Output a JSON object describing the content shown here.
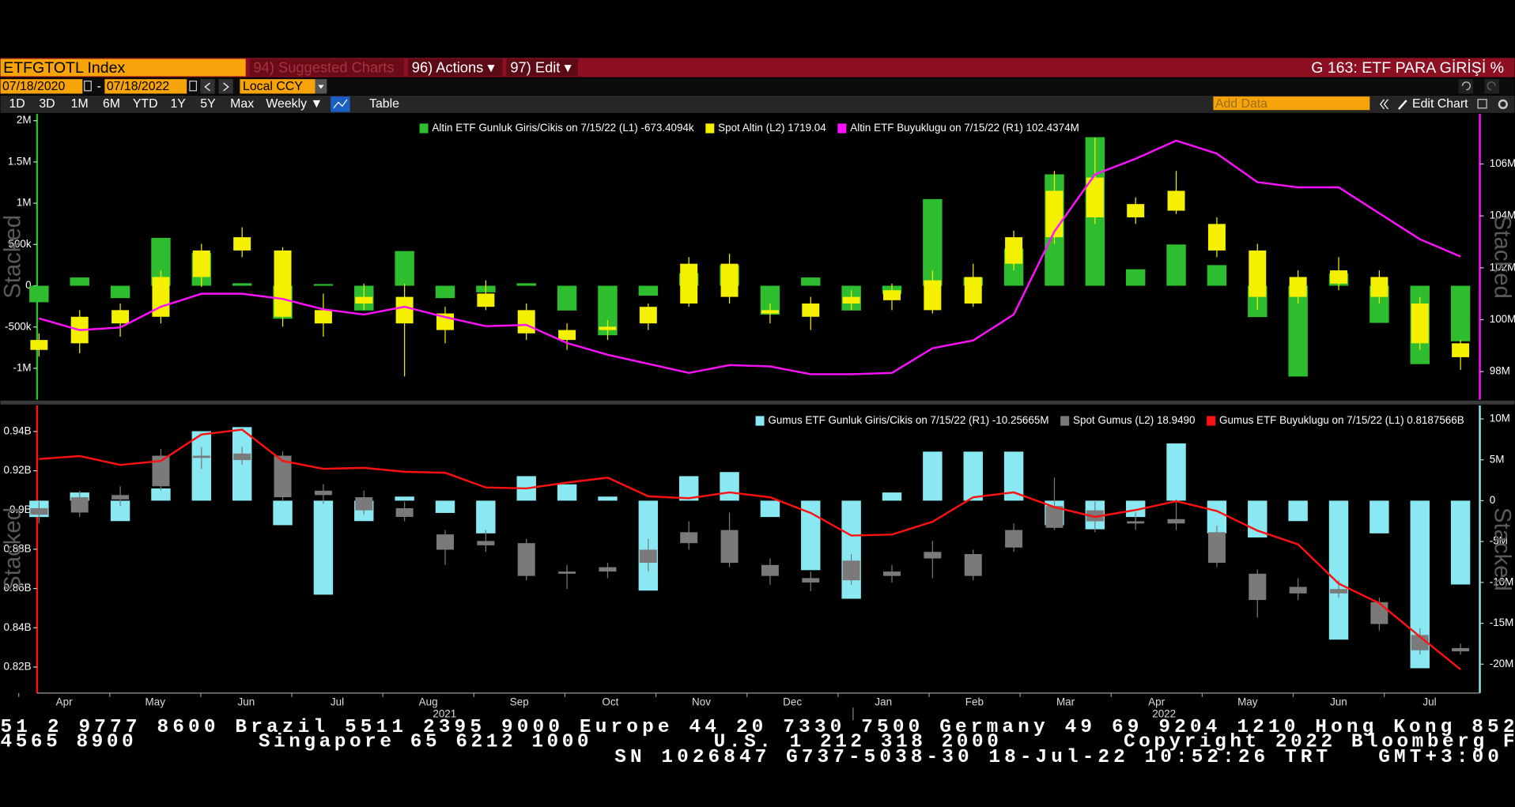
{
  "toolbar": {
    "security": "ETFGTOTL Index",
    "suggested": "94) Suggested Charts",
    "actions": "96) Actions ▾",
    "edit": "97) Edit ▾",
    "page_title": "G 163: ETF PARA GİRİŞİ %",
    "start_date": "07/18/2020",
    "date_separator": "-",
    "end_date": "07/18/2022",
    "currency": "Local CCY",
    "periods": [
      "1D",
      "3D",
      "1M",
      "6M",
      "YTD",
      "1Y",
      "5Y",
      "Max"
    ],
    "frequency": "Weekly ▼",
    "table": "Table",
    "add_data": "Add Data",
    "edit_chart": "Edit Chart"
  },
  "chart_data": [
    {
      "type": "combo",
      "side_label": "Stacked",
      "ylim": [
        -1380000,
        2082000
      ],
      "yticks": [
        {
          "value": 2000000,
          "label": "2M"
        },
        {
          "value": 1500000,
          "label": "1.5M"
        },
        {
          "value": 1000000,
          "label": "1M"
        },
        {
          "value": 500000,
          "label": "500k"
        },
        0,
        {
          "value": -500000,
          "label": "-500k"
        },
        {
          "value": -1000000,
          "label": "-1M"
        }
      ],
      "y2lim": [
        96920000,
        107930000
      ],
      "y2ticks": [
        {
          "value": 106000000,
          "label": "106M"
        },
        {
          "value": 104000000,
          "label": "104M"
        },
        {
          "value": 102000000,
          "label": "102M"
        },
        {
          "value": 100000000,
          "label": "100M"
        },
        {
          "value": 98000000,
          "label": "98M"
        }
      ],
      "l2lim": [
        1655,
        2086
      ],
      "series": [
        {
          "name": "Altin ETF Gunluk Giris/Cikis on 7/15/22 (L1) -673.4094k",
          "color": "#2ebd2e",
          "kind": "bar",
          "axis": "y",
          "values": [
            -200000,
            100000,
            -150000,
            580000,
            400000,
            30000,
            -400000,
            20000,
            -300000,
            420000,
            -150000,
            -80000,
            30000,
            -300000,
            -600000,
            -120000,
            150000,
            250000,
            -350000,
            100000,
            -300000,
            -100000,
            1050000,
            100000,
            450000,
            1350000,
            1800000,
            200000,
            500000,
            250000,
            -380000,
            -1100000,
            150000,
            -450000,
            -950000,
            -673409.4
          ]
        },
        {
          "name": "Spot Altin (L2) 1719.04",
          "color": "#f5f000",
          "kind": "candle",
          "axis": "l2",
          "open": [
            1730,
            1740,
            1770,
            1780,
            1840,
            1900,
            1880,
            1770,
            1800,
            1810,
            1760,
            1815,
            1790,
            1745,
            1760,
            1770,
            1800,
            1860,
            1790,
            1780,
            1800,
            1805,
            1835,
            1800,
            1860,
            1900,
            1990,
            1930,
            1940,
            1920,
            1880,
            1810,
            1850,
            1840,
            1800,
            1740
          ],
          "close": [
            1745,
            1780,
            1790,
            1840,
            1880,
            1880,
            1780,
            1790,
            1810,
            1770,
            1785,
            1795,
            1755,
            1760,
            1765,
            1795,
            1860,
            1810,
            1785,
            1800,
            1810,
            1820,
            1790,
            1840,
            1900,
            1970,
            1930,
            1950,
            1970,
            1880,
            1810,
            1840,
            1830,
            1810,
            1740,
            1719.04
          ],
          "high": [
            1755,
            1790,
            1800,
            1850,
            1890,
            1915,
            1885,
            1815,
            1830,
            1830,
            1795,
            1835,
            1800,
            1770,
            1775,
            1800,
            1870,
            1875,
            1800,
            1810,
            1820,
            1830,
            1850,
            1860,
            1910,
            2000,
            2050,
            1960,
            2000,
            1930,
            1890,
            1850,
            1870,
            1850,
            1810,
            1745
          ],
          "low": [
            1720,
            1725,
            1750,
            1770,
            1825,
            1870,
            1765,
            1750,
            1790,
            1690,
            1740,
            1790,
            1745,
            1730,
            1745,
            1760,
            1795,
            1800,
            1770,
            1760,
            1790,
            1790,
            1785,
            1795,
            1850,
            1890,
            1920,
            1920,
            1935,
            1870,
            1790,
            1800,
            1820,
            1800,
            1730,
            1700
          ]
        },
        {
          "name": "Altin ETF Buyuklugu on 7/15/22 (R1) 102.4374M",
          "color": "#ff10ff",
          "kind": "line",
          "axis": "y2",
          "values": [
            100050000,
            99600000,
            99700000,
            100500000,
            101000000,
            101000000,
            100800000,
            100400000,
            100200000,
            100500000,
            100100000,
            99750000,
            99800000,
            99100000,
            98650000,
            98300000,
            97950000,
            98250000,
            98200000,
            97900000,
            97900000,
            97950000,
            98900000,
            99200000,
            100200000,
            103400000,
            105600000,
            106200000,
            106900000,
            106400000,
            105300000,
            105100000,
            105100000,
            104100000,
            103100000,
            102437400
          ]
        }
      ]
    },
    {
      "type": "combo",
      "side_label": "Stacked",
      "ylim": [
        806700000,
        953300000
      ],
      "yticks": [
        {
          "value": 940000000,
          "label": "0.94B"
        },
        {
          "value": 920000000,
          "label": "0.92B"
        },
        {
          "value": 900000000,
          "label": "0.9B"
        },
        {
          "value": 880000000,
          "label": "0.88B"
        },
        {
          "value": 860000000,
          "label": "0.86B"
        },
        {
          "value": 840000000,
          "label": "0.84B"
        },
        {
          "value": 820000000,
          "label": "0.82B"
        }
      ],
      "y2lim": [
        -23540000,
        11650000
      ],
      "y2ticks": [
        {
          "value": 10000000,
          "label": "10M"
        },
        {
          "value": 5000000,
          "label": "5M"
        },
        0,
        {
          "value": -5000000,
          "label": "-5M"
        },
        {
          "value": -10000000,
          "label": "-10M"
        },
        {
          "value": -15000000,
          "label": "-15M"
        },
        {
          "value": -20000000,
          "label": "-20M"
        }
      ],
      "l2lim": [
        17.04,
        30.2
      ],
      "series": [
        {
          "name": "Gumus ETF Gunluk Giris/Cikis on 7/15/22 (R1) -10.25665M",
          "color": "#8ae8f2",
          "kind": "bar",
          "axis": "y2",
          "values": [
            -2000000,
            1000000,
            -2500000,
            1500000,
            8500000,
            9000000,
            -3000000,
            -11500000,
            -2500000,
            500000,
            -1500000,
            -4000000,
            3000000,
            2000000,
            500000,
            -11000000,
            3000000,
            3500000,
            -2000000,
            -8500000,
            -12000000,
            1000000,
            6000000,
            6000000,
            6000000,
            -3000000,
            -3500000,
            -2000000,
            7000000,
            -4000000,
            -4500000,
            -2500000,
            -17000000,
            -4000000,
            -20500000,
            -10256650
          ]
        },
        {
          "name": "Spot Gumus (L2) 18.9490",
          "color": "#7a7a7a",
          "kind": "candle",
          "axis": "l2",
          "open": [
            25.5,
            25.3,
            26.1,
            26.5,
            27.9,
            27.7,
            27.9,
            26.1,
            26.0,
            25.5,
            24.3,
            23.8,
            23.9,
            22.6,
            22.6,
            23.0,
            23.9,
            24.5,
            22.9,
            22.3,
            22.2,
            22.6,
            23.2,
            22.4,
            23.7,
            24.6,
            25.4,
            24.8,
            25.0,
            24.4,
            22.5,
            21.6,
            21.8,
            21.2,
            19.7,
            19.1
          ],
          "close": [
            25.2,
            26.0,
            25.9,
            27.9,
            27.8,
            28.0,
            26.0,
            26.3,
            25.4,
            25.1,
            23.6,
            24.0,
            22.4,
            22.5,
            22.8,
            23.6,
            24.4,
            23.0,
            22.4,
            22.1,
            23.1,
            22.4,
            23.5,
            23.4,
            24.5,
            25.6,
            24.9,
            24.9,
            24.8,
            23.0,
            21.3,
            21.9,
            21.6,
            20.2,
            19.0,
            18.949
          ],
          "high": [
            25.8,
            26.3,
            26.5,
            28.2,
            28.3,
            28.3,
            28.1,
            26.6,
            26.3,
            25.8,
            24.5,
            24.5,
            24.1,
            22.9,
            23.0,
            24.1,
            24.9,
            25.3,
            23.2,
            22.6,
            23.4,
            22.9,
            24.0,
            23.6,
            24.8,
            26.9,
            25.8,
            25.3,
            25.9,
            24.7,
            22.7,
            22.3,
            22.2,
            21.4,
            20.0,
            19.3
          ],
          "low": [
            24.8,
            25.1,
            25.6,
            26.3,
            27.3,
            27.5,
            25.8,
            25.7,
            25.2,
            24.9,
            22.9,
            23.5,
            22.2,
            21.8,
            22.3,
            22.6,
            23.6,
            22.8,
            22.0,
            21.7,
            22.0,
            22.1,
            22.3,
            22.2,
            23.5,
            24.5,
            24.4,
            24.5,
            24.5,
            22.8,
            20.5,
            21.3,
            21.4,
            19.9,
            18.8,
            18.8
          ]
        },
        {
          "name": "Gumus ETF Buyuklugu on 7/15/22 (L1) 0.8187566B",
          "color": "#ff1010",
          "kind": "line",
          "axis": "y",
          "values": [
            926000000,
            927500000,
            923000000,
            925000000,
            938500000,
            941000000,
            925000000,
            921000000,
            921500000,
            919500000,
            919000000,
            911500000,
            911000000,
            914000000,
            916500000,
            907000000,
            906000000,
            909000000,
            906500000,
            898500000,
            887000000,
            887500000,
            894000000,
            906500000,
            909000000,
            901500000,
            896500000,
            900000000,
            904500000,
            899500000,
            889500000,
            882500000,
            862500000,
            852500000,
            835500000,
            818756600
          ]
        }
      ]
    }
  ],
  "x_axis": {
    "months": [
      "Apr",
      "May",
      "Jun",
      "Jul",
      "Aug",
      "Sep",
      "Oct",
      "Nov",
      "Dec",
      "Jan",
      "Feb",
      "Mar",
      "Apr",
      "May",
      "Jun",
      "Jul"
    ],
    "years": [
      "2021",
      "2022"
    ]
  },
  "ticker": [
    "51 2 9777 8600 Brazil 5511 2395 9000 Europe 44 20 7330 7500 Germany 49 69 9204 1210 Hong Kong 852",
    "4565 8900        Singapore 65 6212 1000        U.S. 1 212 318 2000        Copyright 2022 Bloomberg F",
    "SN 1026847 G737-5038-30 18-Jul-22 10:52:26 TRT   GMT+3:00"
  ]
}
